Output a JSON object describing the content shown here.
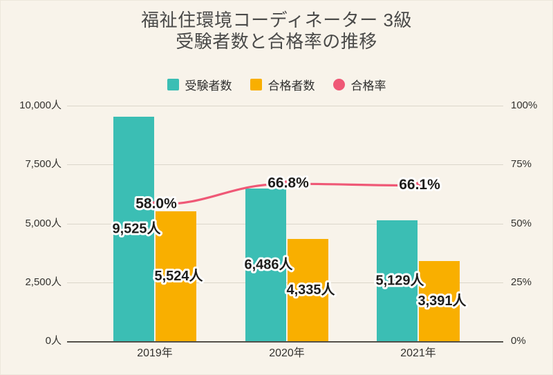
{
  "title": {
    "line1": "福祉住環境コーディネーター 3級",
    "line2": "受験者数と合格率の推移"
  },
  "legend": [
    {
      "label": "受験者数",
      "shape": "square",
      "color": "#3BBEB4"
    },
    {
      "label": "合格者数",
      "shape": "square",
      "color": "#F9AF00"
    },
    {
      "label": "合格率",
      "shape": "circle",
      "color": "#EF5876"
    }
  ],
  "chart_data": {
    "type": "bar",
    "title": "福祉住環境コーディネーター 3級 受験者数と合格率の推移",
    "categories": [
      "2019年",
      "2020年",
      "2021年"
    ],
    "series": [
      {
        "name": "受験者数",
        "type": "bar",
        "axis": "left",
        "color": "#3BBEB4",
        "values": [
          9525,
          6486,
          5129
        ],
        "labels": [
          "9,525人",
          "6,486人",
          "5,129人"
        ]
      },
      {
        "name": "合格者数",
        "type": "bar",
        "axis": "left",
        "color": "#F9AF00",
        "values": [
          5524,
          4335,
          3391
        ],
        "labels": [
          "5,524人",
          "4,335人",
          "3,391人"
        ]
      },
      {
        "name": "合格率",
        "type": "line",
        "axis": "right",
        "color": "#EF5876",
        "values": [
          58.0,
          66.8,
          66.1
        ],
        "labels": [
          "58.0%",
          "66.8%",
          "66.1%"
        ]
      }
    ],
    "left_axis": {
      "min": 0,
      "max": 10000,
      "ticks": [
        "10,000人",
        "7,500人",
        "5,000人",
        "2,500人",
        "0人"
      ]
    },
    "right_axis": {
      "min": 0,
      "max": 100,
      "ticks": [
        "100%",
        "75%",
        "50%",
        "25%",
        "0%"
      ]
    },
    "grid": true,
    "legend_position": "top",
    "value_label_style": {
      "fill": "#1E1D1B",
      "outline": "#FFFFFF"
    }
  }
}
